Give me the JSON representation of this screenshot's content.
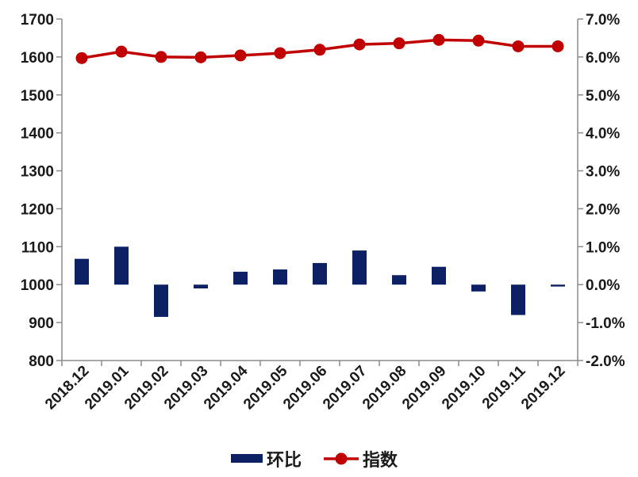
{
  "chart_data": {
    "type": "bar+line",
    "categories": [
      "2018.12",
      "2019.01",
      "2019.02",
      "2019.03",
      "2019.04",
      "2019.05",
      "2019.06",
      "2019.07",
      "2019.08",
      "2019.09",
      "2019.10",
      "2019.11",
      "2019.12"
    ],
    "series": [
      {
        "name": "环比",
        "type": "bar",
        "axis": "right",
        "color": "#0d2064",
        "values": [
          0.68,
          1.0,
          -0.85,
          -0.1,
          0.34,
          0.4,
          0.57,
          0.9,
          0.25,
          0.47,
          -0.18,
          -0.8,
          -0.05
        ]
      },
      {
        "name": "指数",
        "type": "line",
        "axis": "left",
        "color": "#c00000",
        "values": [
          1597,
          1614,
          1600,
          1599,
          1604,
          1610,
          1619,
          1633,
          1636,
          1645,
          1643,
          1628,
          1628
        ]
      }
    ],
    "y_left": {
      "min": 800,
      "max": 1700,
      "step": 100,
      "ticks": [
        "800",
        "900",
        "1000",
        "1100",
        "1200",
        "1300",
        "1400",
        "1500",
        "1600",
        "1700"
      ]
    },
    "y_right": {
      "min": -2.0,
      "max": 7.0,
      "step": 1.0,
      "ticks": [
        "-2.0%",
        "-1.0%",
        "0.0%",
        "1.0%",
        "2.0%",
        "3.0%",
        "4.0%",
        "5.0%",
        "6.0%",
        "7.0%"
      ]
    },
    "grid": false,
    "legend_position": "bottom"
  }
}
